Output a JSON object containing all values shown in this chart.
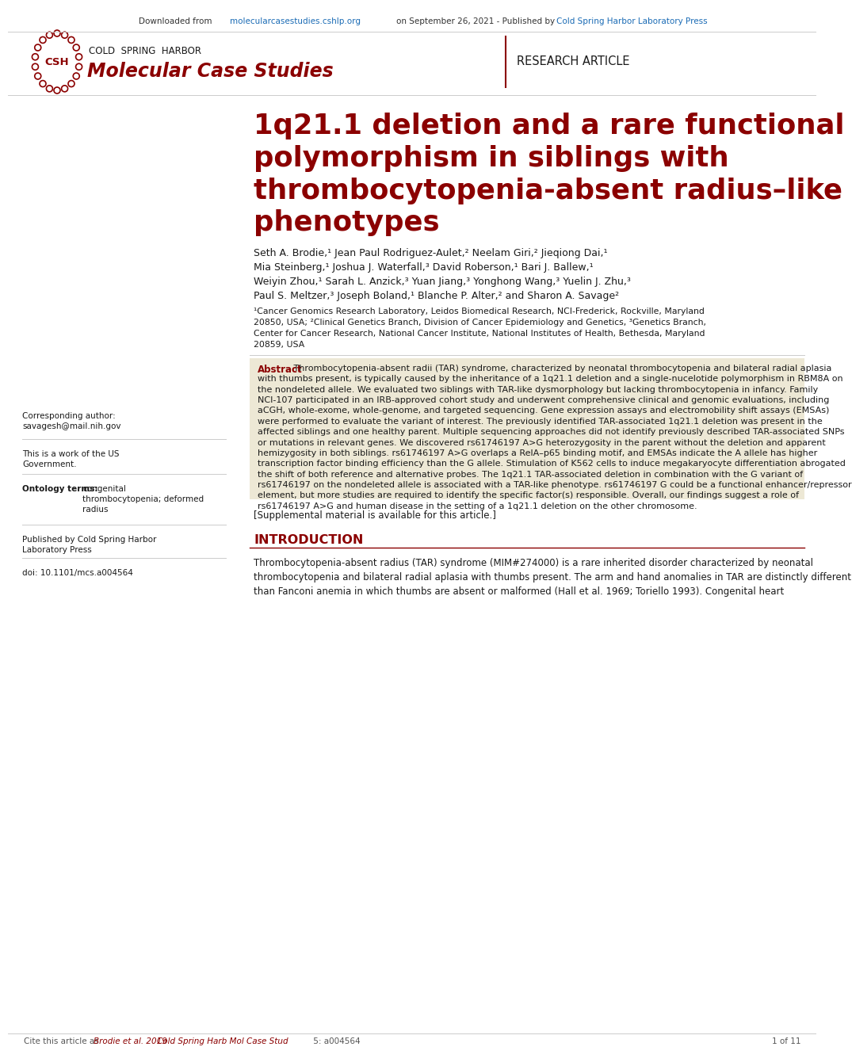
{
  "journal_top": "COLD  SPRING  HARBOR",
  "journal_bottom": "Molecular Case Studies",
  "research_tag": "RESEARCH ARTICLE",
  "title": "1q21.1 deletion and a rare functional\npolymorphism in siblings with\nthrombocytopenia-absent radius–like\nphenotypes",
  "authors_line1": "Seth A. Brodie,¹ Jean Paul Rodriguez-Aulet,² Neelam Giri,² Jieqiong Dai,¹",
  "authors_line2": "Mia Steinberg,¹ Joshua J. Waterfall,³ David Roberson,¹ Bari J. Ballew,¹",
  "authors_line3": "Weiyin Zhou,¹ Sarah L. Anzick,³ Yuan Jiang,³ Yonghong Wang,³ Yuelin J. Zhu,³",
  "authors_line4": "Paul S. Meltzer,³ Joseph Boland,¹ Blanche P. Alter,² and Sharon A. Savage²",
  "affil1": "¹Cancer Genomics Research Laboratory, Leidos Biomedical Research, NCI-Frederick, Rockville, Maryland",
  "affil2": "20850, USA; ²Clinical Genetics Branch, Division of Cancer Epidemiology and Genetics, ³Genetics Branch,",
  "affil3": "Center for Cancer Research, National Cancer Institute, National Institutes of Health, Bethesda, Maryland",
  "affil4": "20859, USA",
  "abstract_label": "Abstract",
  "abstract_body": "Thrombocytopenia-absent radii (TAR) syndrome, characterized by neonatal thrombocytopenia and bilateral radial aplasia with thumbs present, is typically caused by the inheritance of a 1q21.1 deletion and a single-nucelotide polymorphism in RBM8A on the nondeleted allele. We evaluated two siblings with TAR-like dysmorphology but lacking thrombocytopenia in infancy. Family NCI-107 participated in an IRB-approved cohort study and underwent comprehensive clinical and genomic evaluations, including aCGH, whole-exome, whole-genome, and targeted sequencing. Gene expression assays and electromobility shift assays (EMSAs) were performed to evaluate the variant of interest. The previously identified TAR-associated 1q21.1 deletion was present in the affected siblings and one healthy parent. Multiple sequencing approaches did not identify previously described TAR-associated SNPs or mutations in relevant genes. We discovered rs61746197 A>G heterozygosity in the parent without the deletion and apparent hemizygosity in both siblings. rs61746197 A>G overlaps a RelA–p65 binding motif, and EMSAs indicate the A allele has higher transcription factor binding efficiency than the G allele. Stimulation of K562 cells to induce megakaryocyte differentiation abrogated the shift of both reference and alternative probes. The 1q21.1 TAR-associated deletion in combination with the G variant of rs61746197 on the nondeleted allele is associated with a TAR-like phenotype. rs61746197 G could be a functional enhancer/repressor element, but more studies are required to identify the specific factor(s) responsible. Overall, our findings suggest a role of rs61746197 A>G and human disease in the setting of a 1q21.1 deletion on the other chromosome.",
  "supplemental": "[Supplemental material is available for this article.]",
  "intro_label": "INTRODUCTION",
  "intro_body": "Thrombocytopenia-absent radius (TAR) syndrome (MIM#274000) is a rare inherited disorder characterized by neonatal thrombocytopenia and bilateral radial aplasia with thumbs present. The arm and hand anomalies in TAR are distinctly different than Fanconi anemia in which thumbs are absent or malformed (Hall et al. 1969; Toriello 1993). Congenital heart",
  "left_corr": "Corresponding author:\nsavagesh@mail.nih.gov",
  "left_gov": "This is a work of the US\nGovernment.",
  "left_onto_label": "Ontology terms:",
  "left_onto_body": "congenital\nthrombocytopenia; deformed\nradius",
  "left_pub": "Published by Cold Spring Harbor\nLaboratory Press",
  "left_doi": "doi: 10.1101/mcs.a004564",
  "footer_cite": "Cite this article as",
  "footer_authors": "Brodie et al. 2019",
  "footer_journal": "Cold Spring Harb Mol Case Stud",
  "footer_vol": "5: a004564",
  "footer_page": "1 of 11",
  "bg": "#ffffff",
  "crimson": "#8b0000",
  "dark": "#1a1a1a",
  "gray": "#555555",
  "link_blue": "#1a6bb5",
  "abs_bg": "#ede8d5",
  "divider": "#cccccc"
}
